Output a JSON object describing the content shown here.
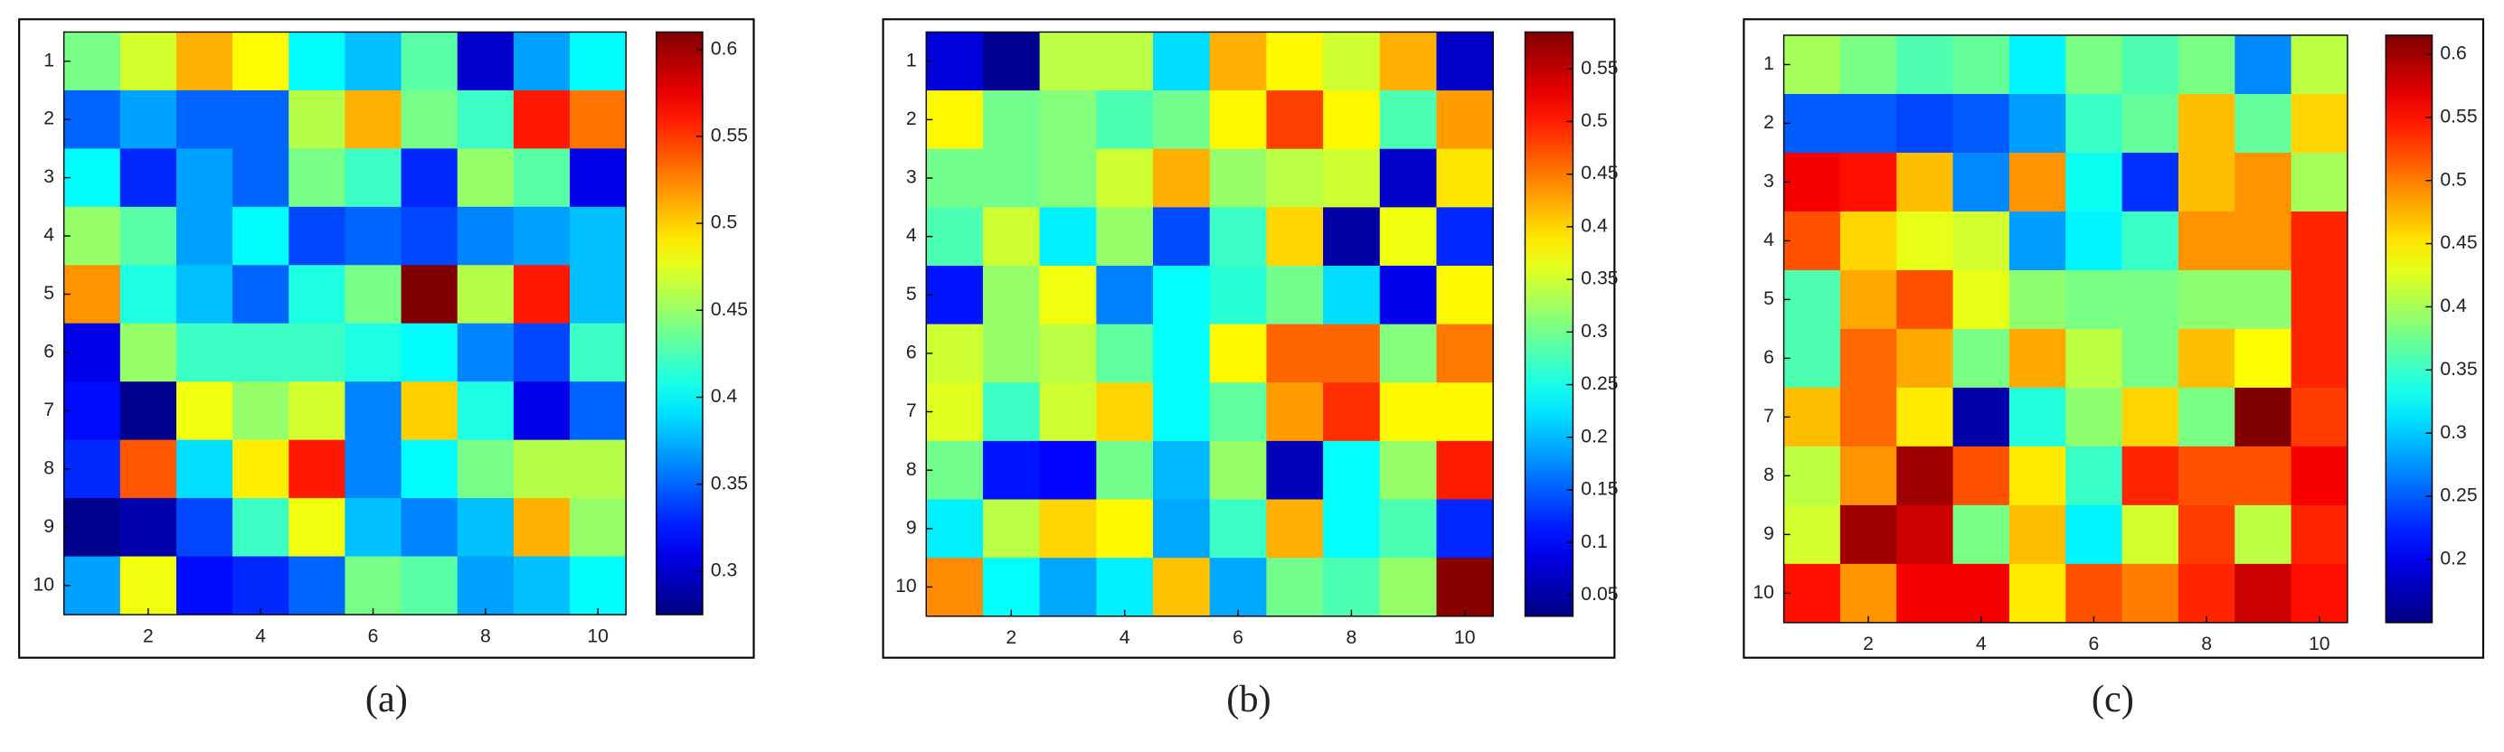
{
  "chart_data": [
    {
      "type": "heatmap",
      "caption": "(a)",
      "colormap": "jet",
      "xlim": [
        0.5,
        10.5
      ],
      "xticks": [
        2,
        4,
        6,
        8,
        10
      ],
      "ylim": [
        0.5,
        10.5
      ],
      "yticks": [
        1,
        2,
        3,
        4,
        5,
        6,
        7,
        8,
        9,
        10
      ],
      "clim": [
        0.275,
        0.61
      ],
      "cticks": [
        0.3,
        0.35,
        0.4,
        0.45,
        0.5,
        0.55,
        0.6
      ],
      "values": [
        [
          0.44,
          0.47,
          0.51,
          0.485,
          0.4,
          0.38,
          0.43,
          0.3,
          0.37,
          0.4
        ],
        [
          0.35,
          0.37,
          0.35,
          0.35,
          0.46,
          0.51,
          0.44,
          0.42,
          0.56,
          0.53
        ],
        [
          0.4,
          0.33,
          0.37,
          0.35,
          0.44,
          0.42,
          0.33,
          0.45,
          0.43,
          0.31
        ],
        [
          0.45,
          0.43,
          0.37,
          0.4,
          0.34,
          0.35,
          0.34,
          0.36,
          0.37,
          0.38
        ],
        [
          0.52,
          0.41,
          0.38,
          0.35,
          0.41,
          0.44,
          0.61,
          0.46,
          0.56,
          0.38
        ],
        [
          0.31,
          0.45,
          0.42,
          0.42,
          0.42,
          0.41,
          0.4,
          0.36,
          0.34,
          0.42
        ],
        [
          0.32,
          0.28,
          0.48,
          0.45,
          0.47,
          0.36,
          0.5,
          0.41,
          0.31,
          0.35
        ],
        [
          0.33,
          0.54,
          0.39,
          0.49,
          0.56,
          0.36,
          0.4,
          0.44,
          0.46,
          0.46
        ],
        [
          0.28,
          0.29,
          0.34,
          0.42,
          0.48,
          0.38,
          0.36,
          0.38,
          0.51,
          0.45
        ],
        [
          0.37,
          0.48,
          0.32,
          0.33,
          0.35,
          0.44,
          0.43,
          0.37,
          0.38,
          0.4
        ]
      ]
    },
    {
      "type": "heatmap",
      "caption": "(b)",
      "colormap": "jet",
      "xlim": [
        0.5,
        10.5
      ],
      "xticks": [
        2,
        4,
        6,
        8,
        10
      ],
      "ylim": [
        0.5,
        10.5
      ],
      "yticks": [
        1,
        2,
        3,
        4,
        5,
        6,
        7,
        8,
        9,
        10
      ],
      "clim": [
        0.03,
        0.585
      ],
      "cticks": [
        0.05,
        0.1,
        0.15,
        0.2,
        0.25,
        0.3,
        0.35,
        0.4,
        0.45,
        0.5,
        0.55
      ],
      "values": [
        [
          0.08,
          0.04,
          0.34,
          0.34,
          0.22,
          0.42,
          0.38,
          0.35,
          0.42,
          0.07
        ],
        [
          0.38,
          0.3,
          0.31,
          0.28,
          0.3,
          0.38,
          0.48,
          0.38,
          0.28,
          0.43
        ],
        [
          0.3,
          0.3,
          0.31,
          0.35,
          0.42,
          0.32,
          0.34,
          0.35,
          0.07,
          0.39
        ],
        [
          0.28,
          0.35,
          0.23,
          0.32,
          0.14,
          0.27,
          0.4,
          0.05,
          0.37,
          0.12
        ],
        [
          0.11,
          0.32,
          0.37,
          0.17,
          0.24,
          0.26,
          0.3,
          0.22,
          0.09,
          0.38
        ],
        [
          0.35,
          0.32,
          0.34,
          0.29,
          0.24,
          0.38,
          0.46,
          0.46,
          0.31,
          0.45
        ],
        [
          0.36,
          0.27,
          0.35,
          0.4,
          0.24,
          0.29,
          0.43,
          0.49,
          0.38,
          0.38
        ],
        [
          0.3,
          0.11,
          0.1,
          0.3,
          0.2,
          0.32,
          0.06,
          0.24,
          0.32,
          0.5
        ],
        [
          0.23,
          0.34,
          0.4,
          0.38,
          0.19,
          0.27,
          0.42,
          0.24,
          0.28,
          0.12
        ],
        [
          0.44,
          0.24,
          0.19,
          0.23,
          0.41,
          0.19,
          0.3,
          0.28,
          0.32,
          0.58
        ]
      ]
    },
    {
      "type": "heatmap",
      "caption": "(c)",
      "colormap": "jet",
      "xlim": [
        0.5,
        10.5
      ],
      "xticks": [
        2,
        4,
        6,
        8,
        10
      ],
      "ylim": [
        0.5,
        10.5
      ],
      "yticks": [
        1,
        2,
        3,
        4,
        5,
        6,
        7,
        8,
        9,
        10
      ],
      "clim": [
        0.15,
        0.615
      ],
      "cticks": [
        0.2,
        0.25,
        0.3,
        0.35,
        0.4,
        0.45,
        0.5,
        0.55,
        0.6
      ],
      "values": [
        [
          0.4,
          0.38,
          0.36,
          0.37,
          0.32,
          0.38,
          0.36,
          0.38,
          0.27,
          0.41
        ],
        [
          0.25,
          0.25,
          0.24,
          0.25,
          0.28,
          0.35,
          0.37,
          0.47,
          0.37,
          0.46
        ],
        [
          0.56,
          0.55,
          0.47,
          0.27,
          0.49,
          0.33,
          0.23,
          0.47,
          0.49,
          0.4
        ],
        [
          0.52,
          0.46,
          0.43,
          0.42,
          0.28,
          0.32,
          0.35,
          0.49,
          0.49,
          0.54
        ],
        [
          0.36,
          0.48,
          0.52,
          0.43,
          0.39,
          0.38,
          0.38,
          0.39,
          0.39,
          0.54
        ],
        [
          0.36,
          0.51,
          0.48,
          0.38,
          0.48,
          0.41,
          0.38,
          0.47,
          0.44,
          0.54
        ],
        [
          0.47,
          0.51,
          0.45,
          0.17,
          0.34,
          0.39,
          0.46,
          0.38,
          0.615,
          0.53
        ],
        [
          0.41,
          0.49,
          0.6,
          0.52,
          0.45,
          0.35,
          0.54,
          0.52,
          0.52,
          0.56
        ],
        [
          0.42,
          0.6,
          0.58,
          0.38,
          0.47,
          0.32,
          0.42,
          0.53,
          0.41,
          0.54
        ],
        [
          0.55,
          0.49,
          0.56,
          0.56,
          0.45,
          0.52,
          0.5,
          0.54,
          0.58,
          0.55
        ]
      ]
    }
  ]
}
